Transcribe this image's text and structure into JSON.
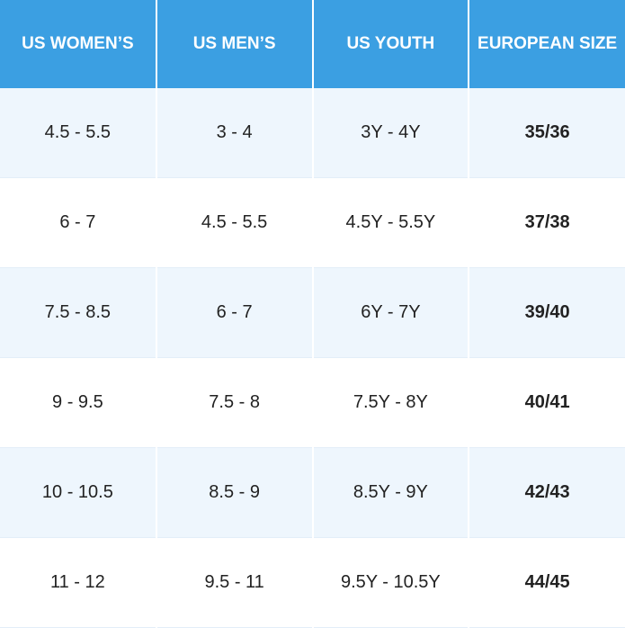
{
  "table": {
    "headers": [
      "US WOMEN’S",
      "US MEN’S",
      "US YOUTH",
      "EUROPEAN SIZE"
    ],
    "rows": [
      [
        "4.5 - 5.5",
        "3 - 4",
        "3Y - 4Y",
        "35/36"
      ],
      [
        "6 - 7",
        "4.5 - 5.5",
        "4.5Y - 5.5Y",
        "37/38"
      ],
      [
        "7.5 - 8.5",
        "6 - 7",
        "6Y - 7Y",
        "39/40"
      ],
      [
        "9 - 9.5",
        "7.5 - 8",
        "7.5Y - 8Y",
        "40/41"
      ],
      [
        "10 - 10.5",
        "8.5 - 9",
        "8.5Y - 9Y",
        "42/43"
      ],
      [
        "11 - 12",
        "9.5 - 11",
        "9.5Y - 10.5Y",
        "44/45"
      ]
    ]
  }
}
